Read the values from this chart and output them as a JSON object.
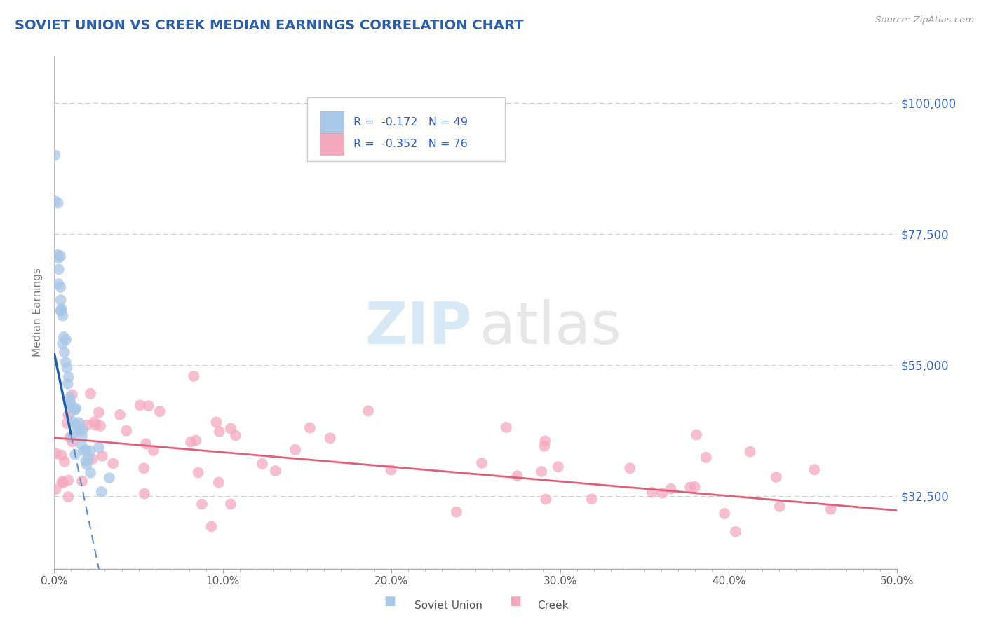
{
  "title": "SOVIET UNION VS CREEK MEDIAN EARNINGS CORRELATION CHART",
  "source": "Source: ZipAtlas.com",
  "ylabel": "Median Earnings",
  "yticks": [
    32500,
    55000,
    77500,
    100000
  ],
  "ytick_labels": [
    "$32,500",
    "$55,000",
    "$77,500",
    "$100,000"
  ],
  "xlim": [
    0.0,
    0.5
  ],
  "ylim": [
    20000,
    108000
  ],
  "xtick_labels": [
    "0.0%",
    "",
    "",
    "",
    "",
    "",
    "",
    "",
    "",
    "",
    "10.0%",
    "",
    "",
    "",
    "",
    "",
    "",
    "",
    "",
    "",
    "20.0%",
    "",
    "",
    "",
    "",
    "",
    "",
    "",
    "",
    "",
    "30.0%",
    "",
    "",
    "",
    "",
    "",
    "",
    "",
    "",
    "",
    "40.0%",
    "",
    "",
    "",
    "",
    "",
    "",
    "",
    "",
    "",
    "50.0%"
  ],
  "xtick_vals": [
    0.0,
    0.01,
    0.02,
    0.03,
    0.04,
    0.05,
    0.06,
    0.07,
    0.08,
    0.09,
    0.1,
    0.11,
    0.12,
    0.13,
    0.14,
    0.15,
    0.16,
    0.17,
    0.18,
    0.19,
    0.2,
    0.21,
    0.22,
    0.23,
    0.24,
    0.25,
    0.26,
    0.27,
    0.28,
    0.29,
    0.3,
    0.31,
    0.32,
    0.33,
    0.34,
    0.35,
    0.36,
    0.37,
    0.38,
    0.39,
    0.4,
    0.41,
    0.42,
    0.43,
    0.44,
    0.45,
    0.46,
    0.47,
    0.48,
    0.49,
    0.5
  ],
  "major_xtick_vals": [
    0.0,
    0.1,
    0.2,
    0.3,
    0.4,
    0.5
  ],
  "major_xtick_labels": [
    "0.0%",
    "10.0%",
    "20.0%",
    "30.0%",
    "40.0%",
    "50.0%"
  ],
  "soviet_R": -0.172,
  "soviet_N": 49,
  "creek_R": -0.352,
  "creek_N": 76,
  "soviet_color": "#a8c8e8",
  "creek_color": "#f4a8be",
  "soviet_line_color": "#1a5fa8",
  "creek_line_color": "#e0607a",
  "soviet_dash_color": "#6090c8",
  "background_color": "#ffffff",
  "title_color": "#2c5fa8",
  "ytick_color": "#3060cc",
  "grid_color": "#cccccc",
  "watermark_zip_color": "#b8d8f0",
  "watermark_atlas_color": "#c8c8c8"
}
